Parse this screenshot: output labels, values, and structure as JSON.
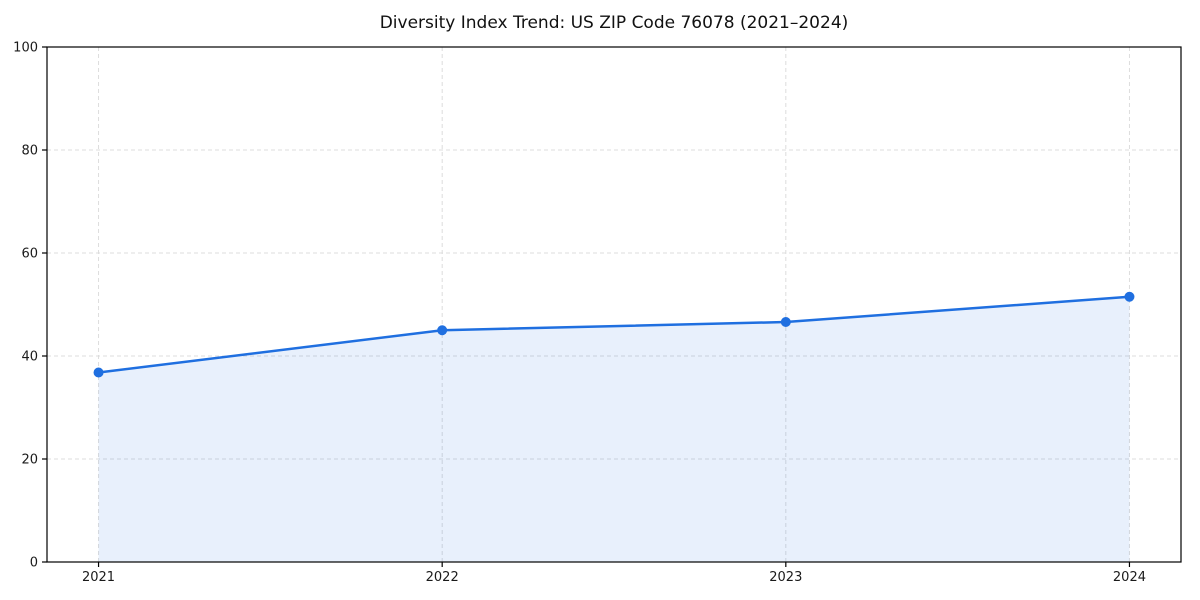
{
  "chart_data": {
    "type": "area",
    "title": "Diversity Index Trend: US ZIP Code 76078 (2021–2024)",
    "x": [
      2021,
      2022,
      2023,
      2024
    ],
    "values": [
      36.8,
      45.0,
      46.6,
      51.5
    ],
    "series_name": "Diversity Index",
    "xticks": [
      "2021",
      "2022",
      "2023",
      "2024"
    ],
    "yticks": [
      0,
      20,
      40,
      60,
      80,
      100
    ],
    "xlim": [
      2020.85,
      2024.15
    ],
    "ylim": [
      0,
      100
    ],
    "xlabel": "",
    "ylabel": "",
    "grid": true,
    "legend": false,
    "colors": {
      "line": "#1f6fe0",
      "marker": "#1f6fe0",
      "fill": "rgba(31,111,224,0.10)",
      "grid": "#dcdcdc",
      "axis": "#000000",
      "tick_text": "#1a1a1a",
      "title_text": "#111111"
    }
  }
}
